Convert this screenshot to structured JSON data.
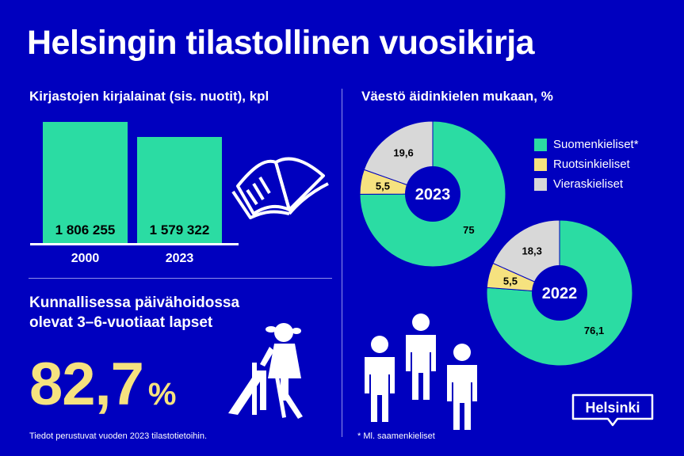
{
  "title": "Helsingin tilastollinen vuosikirja",
  "books": {
    "title": "Kirjastojen kirjalainat (sis. nuotit), kpl",
    "years": [
      "2000",
      "2023"
    ],
    "value_labels": [
      "1 806 255",
      "1 579 322"
    ]
  },
  "daycare": {
    "title_line1": "Kunnallisessa päivähoidossa",
    "title_line2": "olevat 3–6-vuotiaat lapset",
    "value": "82,7",
    "unit": "%"
  },
  "languages": {
    "title": "Väestö äidinkielen mukaan, %",
    "legend": [
      "Suomenkieliset*",
      "Ruotsinkieliset",
      "Vieraskieliset"
    ],
    "colors": [
      "#2bdca3",
      "#f6e27f",
      "#d8d8d8"
    ],
    "footnote": "* Ml. saamenkieliset"
  },
  "source": "Tiedot perustuvat vuoden 2023 tilastotietoihin.",
  "logo_text": "Helsinki",
  "chart_data": [
    {
      "type": "bar",
      "title": "Kirjastojen kirjalainat (sis. nuotit), kpl",
      "categories": [
        "2000",
        "2023"
      ],
      "values": [
        1806255,
        1579322
      ],
      "ylim": [
        0,
        1806255
      ]
    },
    {
      "type": "pie",
      "title": "2023",
      "categories": [
        "Suomenkieliset*",
        "Ruotsinkieliset",
        "Vieraskieliset"
      ],
      "values": [
        75,
        5.5,
        19.6
      ],
      "value_labels": [
        "75",
        "5,5",
        "19,6"
      ]
    },
    {
      "type": "pie",
      "title": "2022",
      "categories": [
        "Suomenkieliset*",
        "Ruotsinkieliset",
        "Vieraskieliset"
      ],
      "values": [
        76.1,
        5.5,
        18.3
      ],
      "value_labels": [
        "76,1",
        "5,5",
        "18,3"
      ]
    }
  ]
}
